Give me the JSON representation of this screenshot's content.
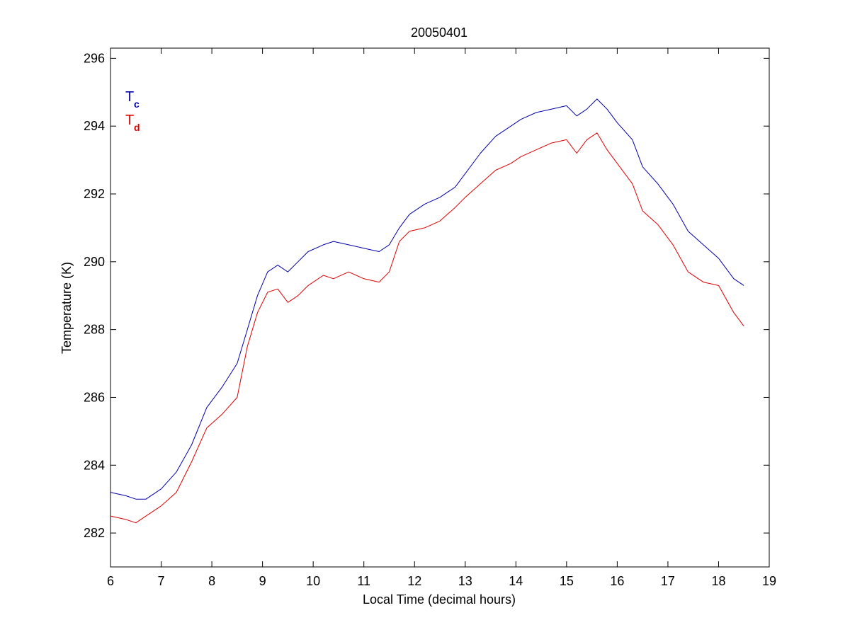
{
  "chart_data": {
    "type": "line",
    "title": "20050401",
    "xlabel": "Local Time (decimal hours)",
    "ylabel": "Temperature (K)",
    "xlim": [
      6,
      19
    ],
    "ylim": [
      281,
      296.3
    ],
    "xticks": [
      "6",
      "7",
      "8",
      "9",
      "10",
      "11",
      "12",
      "13",
      "14",
      "15",
      "16",
      "17",
      "18",
      "19"
    ],
    "yticks": [
      "282",
      "284",
      "286",
      "288",
      "290",
      "292",
      "294",
      "296"
    ],
    "grid": false,
    "legend_position": "top-left",
    "series": [
      {
        "name": "Tc",
        "legend_main": "T",
        "legend_sub": "c",
        "color": "#0000aa",
        "x": [
          6.0,
          6.3,
          6.5,
          6.7,
          7.0,
          7.3,
          7.6,
          7.9,
          8.2,
          8.5,
          8.7,
          8.9,
          9.1,
          9.3,
          9.5,
          9.7,
          9.9,
          10.2,
          10.4,
          10.7,
          11.0,
          11.3,
          11.5,
          11.7,
          11.9,
          12.2,
          12.5,
          12.8,
          13.0,
          13.3,
          13.6,
          13.9,
          14.1,
          14.4,
          14.7,
          15.0,
          15.2,
          15.4,
          15.6,
          15.8,
          16.0,
          16.3,
          16.5,
          16.8,
          17.1,
          17.4,
          17.7,
          18.0,
          18.3,
          18.5
        ],
        "y": [
          283.2,
          283.1,
          283.0,
          283.0,
          283.3,
          283.8,
          284.6,
          285.7,
          286.3,
          287.0,
          288.0,
          289.0,
          289.7,
          289.9,
          289.7,
          290.0,
          290.3,
          290.5,
          290.6,
          290.5,
          290.4,
          290.3,
          290.5,
          291.0,
          291.4,
          291.7,
          291.9,
          292.2,
          292.6,
          293.2,
          293.7,
          294.0,
          294.2,
          294.4,
          294.5,
          294.6,
          294.3,
          294.5,
          294.8,
          294.5,
          294.1,
          293.6,
          292.8,
          292.3,
          291.7,
          290.9,
          290.5,
          290.1,
          289.5,
          289.3
        ]
      },
      {
        "name": "Td",
        "legend_main": "T",
        "legend_sub": "d",
        "color": "#dd0000",
        "x": [
          6.0,
          6.3,
          6.5,
          6.7,
          7.0,
          7.3,
          7.6,
          7.9,
          8.2,
          8.5,
          8.7,
          8.9,
          9.1,
          9.3,
          9.5,
          9.7,
          9.9,
          10.2,
          10.4,
          10.7,
          11.0,
          11.3,
          11.5,
          11.7,
          11.9,
          12.2,
          12.5,
          12.8,
          13.0,
          13.3,
          13.6,
          13.9,
          14.1,
          14.4,
          14.7,
          15.0,
          15.2,
          15.4,
          15.6,
          15.8,
          16.0,
          16.3,
          16.5,
          16.8,
          17.1,
          17.4,
          17.7,
          18.0,
          18.3,
          18.5
        ],
        "y": [
          282.5,
          282.4,
          282.3,
          282.5,
          282.8,
          283.2,
          284.1,
          285.1,
          285.5,
          286.0,
          287.5,
          288.5,
          289.1,
          289.2,
          288.8,
          289.0,
          289.3,
          289.6,
          289.5,
          289.7,
          289.5,
          289.4,
          289.7,
          290.6,
          290.9,
          291.0,
          291.2,
          291.6,
          291.9,
          292.3,
          292.7,
          292.9,
          293.1,
          293.3,
          293.5,
          293.6,
          293.2,
          293.6,
          293.8,
          293.3,
          292.9,
          292.3,
          291.5,
          291.1,
          290.5,
          289.7,
          289.4,
          289.3,
          288.5,
          288.1
        ]
      }
    ]
  }
}
